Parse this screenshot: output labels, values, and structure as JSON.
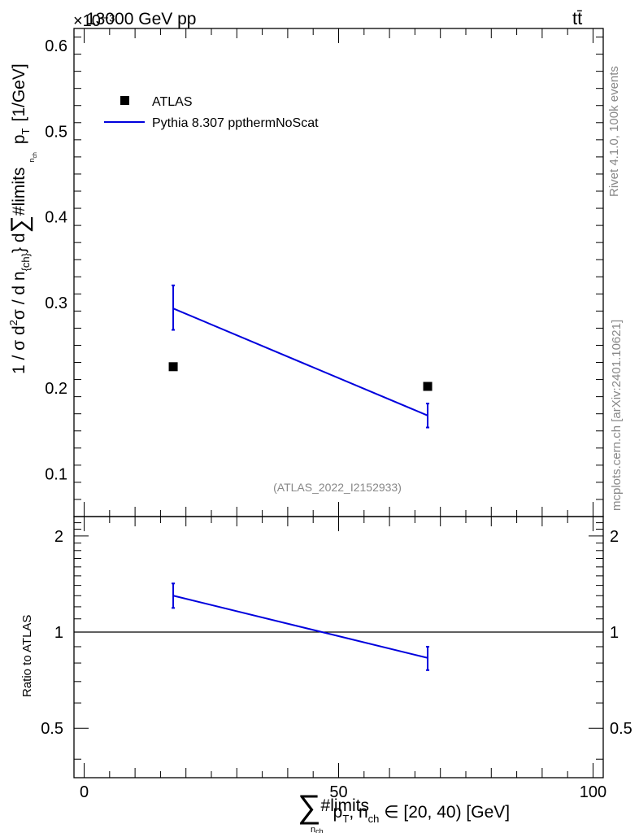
{
  "header": {
    "left_label": "13000 GeV pp",
    "right_label": "tt̄",
    "exponent_label": "×10⁻³"
  },
  "side_labels": {
    "rivet": "Rivet 4.1.0,  100k events",
    "mcplots": "mcplots.cern.ch [arXiv:2401.10621]"
  },
  "analysis_id": "(ATLAS_2022_I2152933)",
  "chart_data": [
    {
      "type": "scatter",
      "panel": "main",
      "ylabel": "1 / σ d²σ / d n_{ch} d ∑#limits_{n_ch} p_T [1/GeV]",
      "ylabel_main": "1 / σ d",
      "ylabel_sup": "2",
      "ylabel_mid": "σ / d n",
      "ylabel_sub": "{ch}",
      "ylabel_mid2": "} d",
      "ylabel_sum": "∑",
      "ylabel_limits": "#limits",
      "ylabel_pt": "p",
      "ylabel_pt_sub": "T",
      "ylabel_nch_sub": "n",
      "ylabel_nch_sub2": "ch",
      "ylabel_unit": "[1/GeV]",
      "xlim": [
        -2,
        102
      ],
      "ylim": [
        0.05,
        0.62
      ],
      "y_scale_factor": "×10⁻³",
      "yticks": [
        0.1,
        0.2,
        0.3,
        0.4,
        0.5,
        0.6
      ],
      "ytick_labels": [
        "0.1",
        "0.2",
        "0.3",
        "0.4",
        "0.5",
        "0.6"
      ],
      "legend_position": "top-left",
      "series": [
        {
          "name": "ATLAS",
          "style": "marker",
          "color": "#000000",
          "x": [
            17.5,
            67.5
          ],
          "y": [
            0.225,
            0.202
          ]
        },
        {
          "name": "Pythia 8.307 ppthermNoScat",
          "style": "line",
          "color": "#0000dd",
          "x": [
            17.5,
            67.5
          ],
          "y": [
            0.293,
            0.168
          ],
          "err_low": [
            0.268,
            0.154
          ],
          "err_high": [
            0.32,
            0.182
          ]
        }
      ]
    },
    {
      "type": "line",
      "panel": "ratio",
      "ylabel": "Ratio to ATLAS",
      "xlim": [
        -2,
        102
      ],
      "ylim": [
        0.35,
        2.3
      ],
      "yticks": [
        0.5,
        1,
        2
      ],
      "ytick_labels": [
        "0.5",
        "1",
        "2"
      ],
      "xticks": [
        0,
        50,
        100
      ],
      "xtick_labels": [
        "0",
        "50",
        "100"
      ],
      "xlabel": "∑#limits_{n_ch} p_T, n_ch ∈ [20, 40) [GeV]",
      "xlabel_sum": "∑",
      "xlabel_limits": "#limits",
      "xlabel_nch": "n",
      "xlabel_nch_sub": "ch",
      "xlabel_pt": "p",
      "xlabel_pt_sub": "T",
      "xlabel_tail": ", n",
      "xlabel_tail_sub": "ch",
      "xlabel_range": " ∈ [20, 40) [GeV]",
      "reference": 1,
      "series": [
        {
          "name": "Pythia 8.307 ppthermNoScat",
          "color": "#0000dd",
          "x": [
            17.5,
            67.5
          ],
          "y": [
            1.3,
            0.83
          ],
          "err_low": [
            1.19,
            0.76
          ],
          "err_high": [
            1.42,
            0.9
          ]
        }
      ]
    }
  ]
}
